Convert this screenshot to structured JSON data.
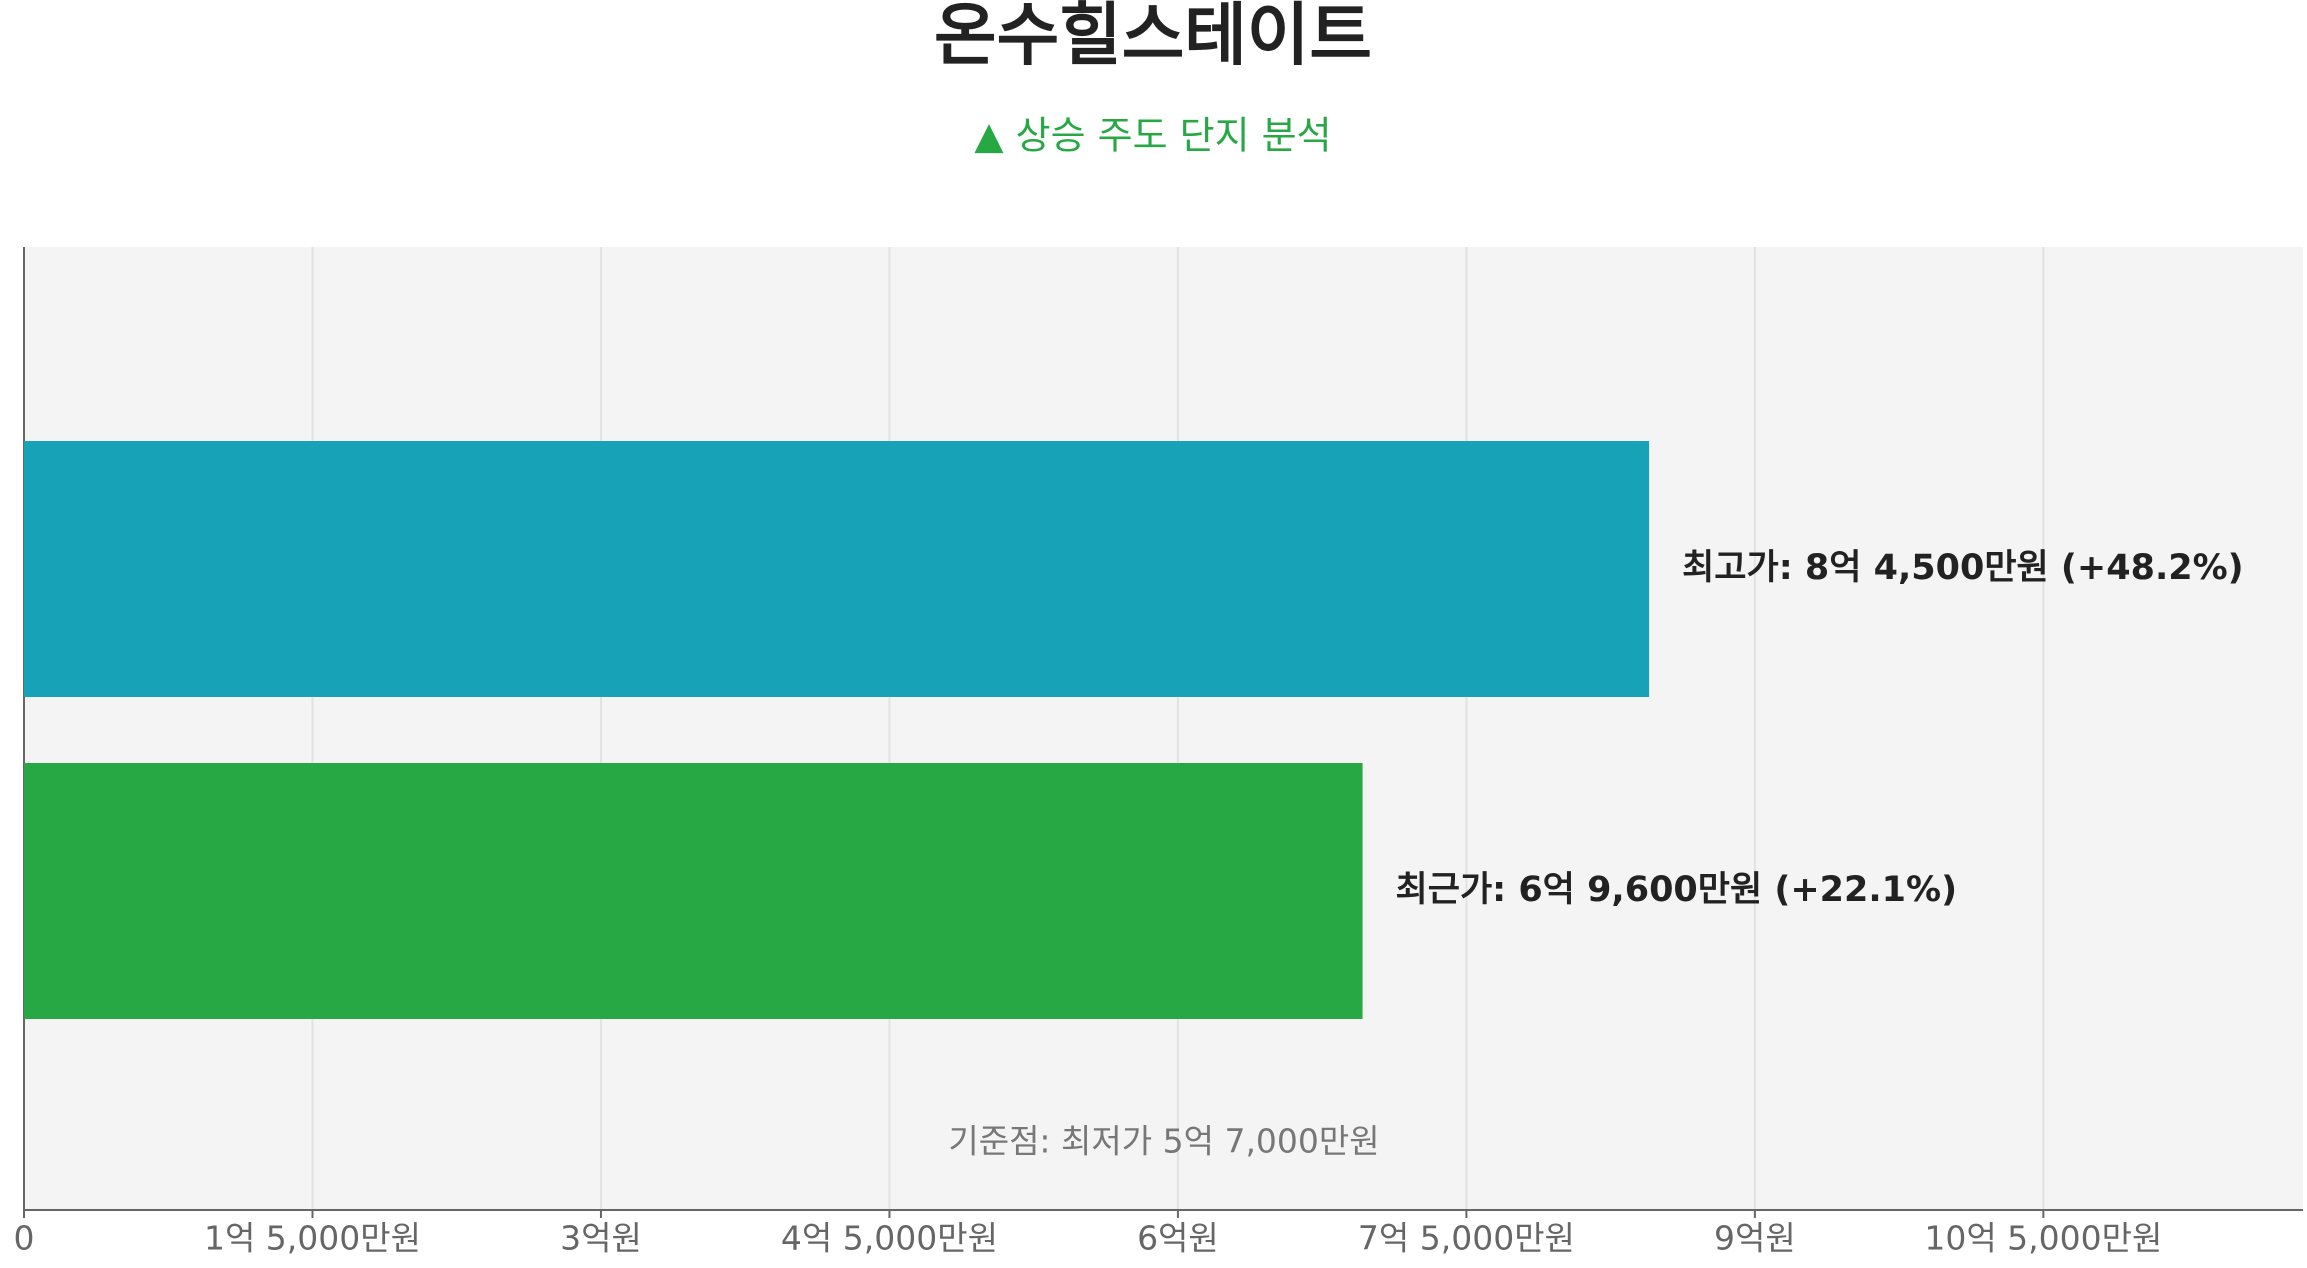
{
  "chart_data": {
    "type": "barh",
    "title": "온수힐스테이트",
    "subtitle": "▲ 상승 주도 단지 분석",
    "values": [
      84500,
      69600
    ],
    "value_labels": [
      "최고가: 8억 4,500만원 (+48.2%)",
      "최근가: 6억 9,600만원 (+22.1%)"
    ],
    "colors": [
      "#17a2b8",
      "#28a745"
    ],
    "annotation": "기준점: 최저가 5억 7,000만원",
    "xlim": [
      0,
      118500
    ],
    "xticks": [
      0,
      {
        "value": 15000,
        "label": "1억 5,000만원"
      },
      {
        "value": 30000,
        "label": "3억원"
      },
      {
        "value": 45000,
        "label": "4억 5,000만원"
      },
      {
        "value": 60000,
        "label": "6억원"
      },
      {
        "value": 75000,
        "label": "7억 5,000만원"
      },
      {
        "value": 90000,
        "label": "9억원"
      },
      {
        "value": 105000,
        "label": "10억 5,000만원"
      }
    ],
    "grid": true
  }
}
